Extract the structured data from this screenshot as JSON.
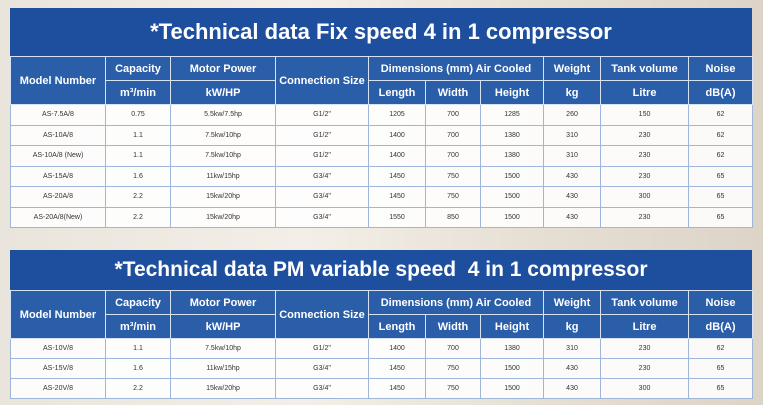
{
  "tables": [
    {
      "title": "*Technical data Fix speed 4 in 1 compressor",
      "header": {
        "row1": [
          "Model Number",
          "Capacity",
          "Motor Power",
          "Connection Size",
          "Dimensions (mm) Air Cooled",
          "Weight",
          "Tank volume",
          "Noise"
        ],
        "row2": [
          "m³/min",
          "kW/HP",
          "Length",
          "Width",
          "Height",
          "kg",
          "Litre",
          "dB(A)"
        ]
      },
      "rows": [
        [
          "AS-7.5A/8",
          "0.75",
          "5.5kw/7.5hp",
          "G1/2\"",
          "1205",
          "700",
          "1285",
          "260",
          "150",
          "62"
        ],
        [
          "AS-10A/8",
          "1.1",
          "7.5kw/10hp",
          "G1/2\"",
          "1400",
          "700",
          "1380",
          "310",
          "230",
          "62"
        ],
        [
          "AS-10A/8 (New)",
          "1.1",
          "7.5kw/10hp",
          "G1/2\"",
          "1400",
          "700",
          "1380",
          "310",
          "230",
          "62"
        ],
        [
          "AS-15A/8",
          "1.6",
          "11kw/15hp",
          "G3/4\"",
          "1450",
          "750",
          "1500",
          "430",
          "230",
          "65"
        ],
        [
          "AS-20A/8",
          "2.2",
          "15kw/20hp",
          "G3/4\"",
          "1450",
          "750",
          "1500",
          "430",
          "300",
          "65"
        ],
        [
          "AS-20A/8(New)",
          "2.2",
          "15kw/20hp",
          "G3/4\"",
          "1550",
          "850",
          "1500",
          "430",
          "230",
          "65"
        ]
      ]
    },
    {
      "title": "*Technical data PM variable speed  4 in 1 compressor",
      "header": {
        "row1": [
          "Model Number",
          "Capacity",
          "Motor Power",
          "Connection Size",
          "Dimensions (mm) Air Cooled",
          "Weight",
          "Tank volume",
          "Noise"
        ],
        "row2": [
          "m³/min",
          "kW/HP",
          "Length",
          "Width",
          "Height",
          "kg",
          "Litre",
          "dB(A)"
        ]
      },
      "rows": [
        [
          "AS-10V/8",
          "1.1",
          "7.5kw/10hp",
          "G1/2\"",
          "1400",
          "700",
          "1380",
          "310",
          "230",
          "62"
        ],
        [
          "AS-15V/8",
          "1.6",
          "11kw/15hp",
          "G3/4\"",
          "1450",
          "750",
          "1500",
          "430",
          "230",
          "65"
        ],
        [
          "AS-20V/8",
          "2.2",
          "15kw/20hp",
          "G3/4\"",
          "1450",
          "750",
          "1500",
          "430",
          "300",
          "65"
        ]
      ]
    }
  ]
}
